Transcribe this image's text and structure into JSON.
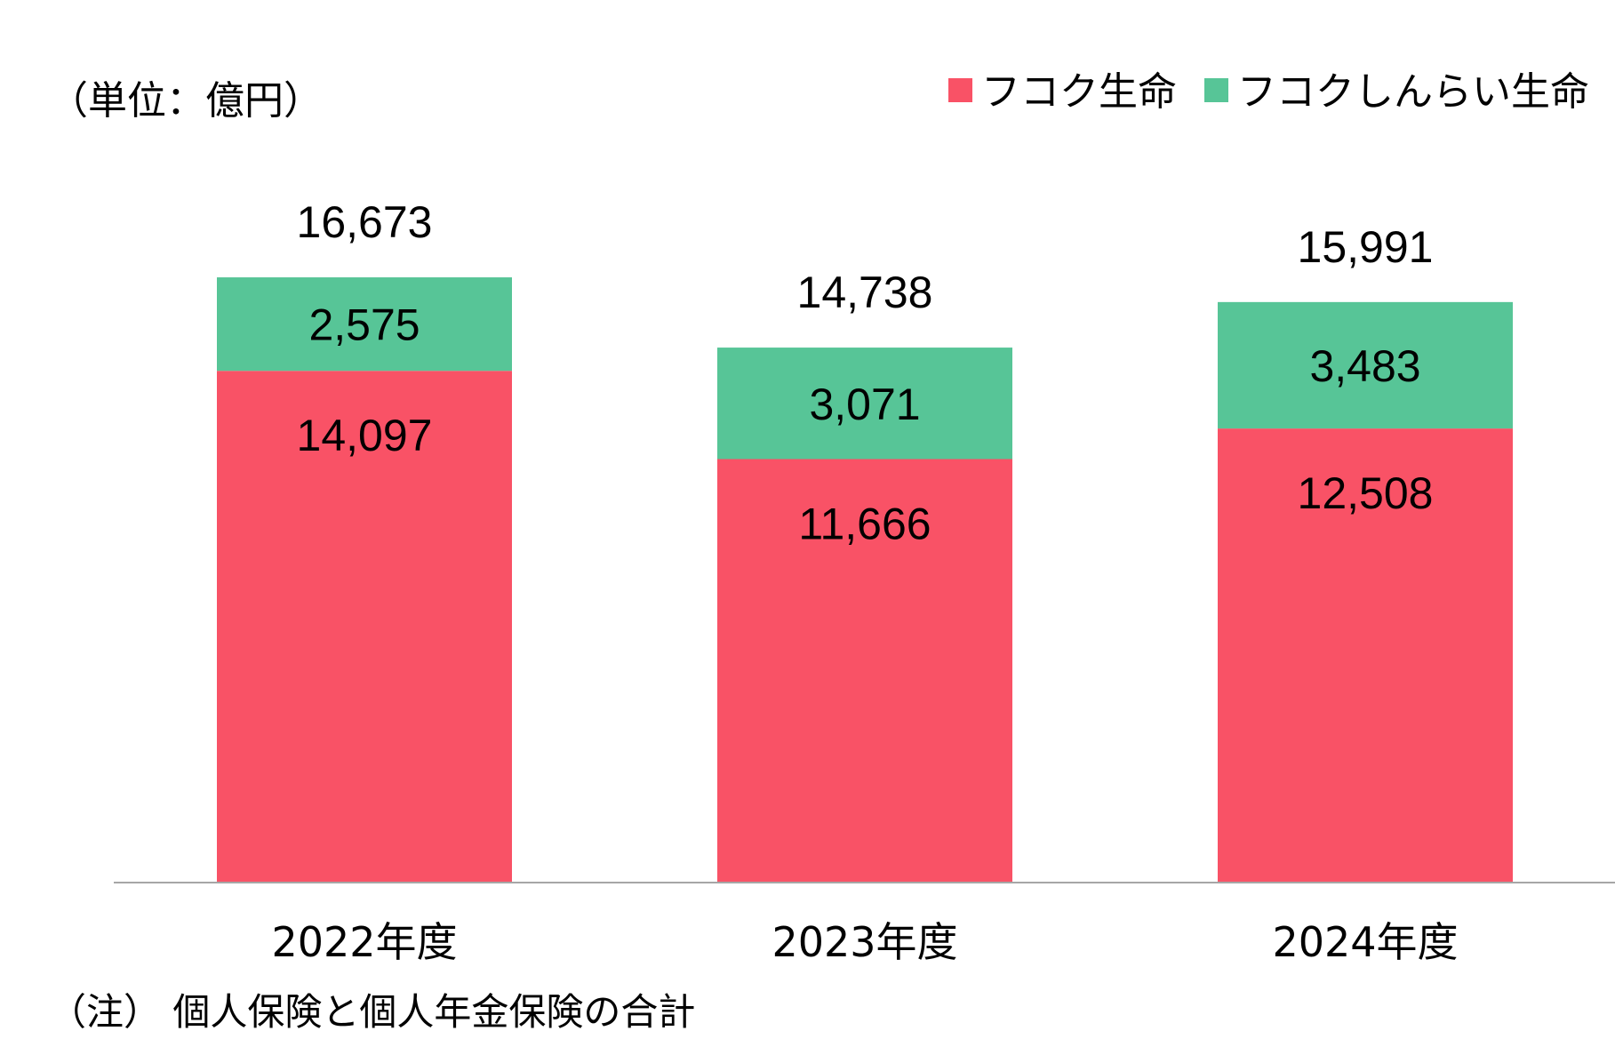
{
  "unit_label": "（単位：億円）",
  "note": "（注） 個人保険と個人年金保険の合計",
  "colors": {
    "fukoku": "#F95266",
    "shinrai": "#57C597",
    "axis": "#A6A6A6"
  },
  "chart_data": {
    "type": "bar",
    "stacked": true,
    "categories": [
      "2022年度",
      "2023年度",
      "2024年度"
    ],
    "series": [
      {
        "name": "フコク生命",
        "values": [
          14097,
          11666,
          12508
        ],
        "labels": [
          "14,097",
          "11,666",
          "12,508"
        ]
      },
      {
        "name": "フコクしんらい生命",
        "values": [
          2575,
          3071,
          3483
        ],
        "labels": [
          "2,575",
          "3,071",
          "3,483"
        ]
      }
    ],
    "totals": [
      16673,
      14738,
      15991
    ],
    "total_labels": [
      "16,673",
      "14,738",
      "15,991"
    ],
    "legend_position": "top-right",
    "grid": false,
    "ylim": [
      0,
      20000
    ]
  }
}
